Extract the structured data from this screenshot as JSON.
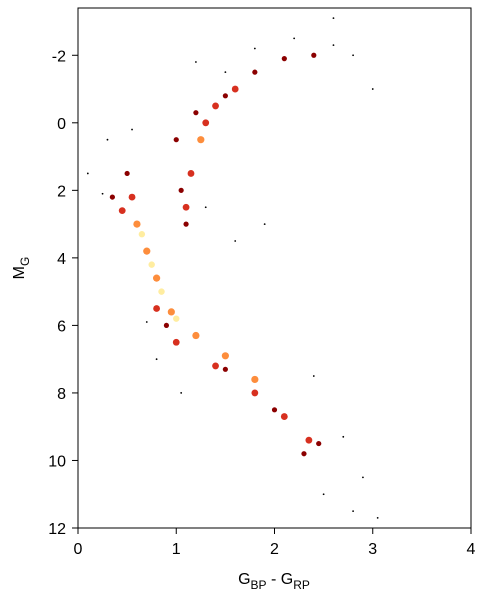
{
  "chart_data": {
    "type": "scatter",
    "x_label": [
      "G",
      "BP",
      " - G",
      "RP"
    ],
    "y_label": [
      "M",
      "G"
    ],
    "xlim": [
      0,
      4
    ],
    "xticks": [
      0,
      1,
      2,
      3,
      4
    ],
    "ylim": [
      12,
      -3.4
    ],
    "yticks": [
      12,
      10,
      8,
      6,
      4,
      2,
      0,
      -2
    ],
    "series": [
      {
        "color": "#000000",
        "x": [
          0.1,
          0.3,
          0.25,
          0.7,
          0.8,
          1.05,
          1.5,
          1.8,
          2.2,
          2.6,
          2.8,
          3.0,
          2.9,
          2.8,
          3.05,
          2.5,
          1.6,
          1.9,
          2.4,
          2.7,
          1.2,
          2.6,
          0.55,
          1.3
        ],
        "y": [
          1.5,
          0.5,
          2.1,
          5.9,
          7,
          8,
          -1.5,
          -2.2,
          -2.5,
          -2.3,
          -2,
          -1.0,
          10.5,
          11.5,
          11.7,
          11,
          3.5,
          3.0,
          7.5,
          9.3,
          -1.8,
          -3.1,
          0.2,
          2.5
        ]
      },
      {
        "color": "#8b0000",
        "x": [
          1.0,
          1.2,
          1.5,
          1.8,
          2.1,
          2.4,
          1.1,
          1.05,
          0.35,
          0.5,
          2.3,
          2.45,
          2.0,
          1.5,
          0.9
        ],
        "y": [
          0.5,
          -0.3,
          -0.8,
          -1.5,
          -1.9,
          -2.0,
          3,
          2,
          2.2,
          1.5,
          9.8,
          9.5,
          8.5,
          7.3,
          6.0
        ]
      },
      {
        "color": "#d7301f",
        "x": [
          1.15,
          1.1,
          1.3,
          1.4,
          1.6,
          0.45,
          0.55,
          1.0,
          1.4,
          1.8,
          2.1,
          2.35,
          0.8
        ],
        "y": [
          1.5,
          2.5,
          0,
          -0.5,
          -1.0,
          2.6,
          2.2,
          6.5,
          7.2,
          8.0,
          8.7,
          9.4,
          5.5
        ]
      },
      {
        "color": "#fd8d3c",
        "x": [
          0.6,
          0.7,
          0.8,
          0.95,
          1.2,
          1.5,
          1.8,
          1.25
        ],
        "y": [
          3.0,
          3.8,
          4.6,
          5.6,
          6.3,
          6.9,
          7.6,
          0.5
        ]
      },
      {
        "color": "#ffeda0",
        "x": [
          0.65,
          0.75,
          0.85,
          1.0
        ],
        "y": [
          3.3,
          4.2,
          5.0,
          5.8
        ]
      }
    ]
  }
}
